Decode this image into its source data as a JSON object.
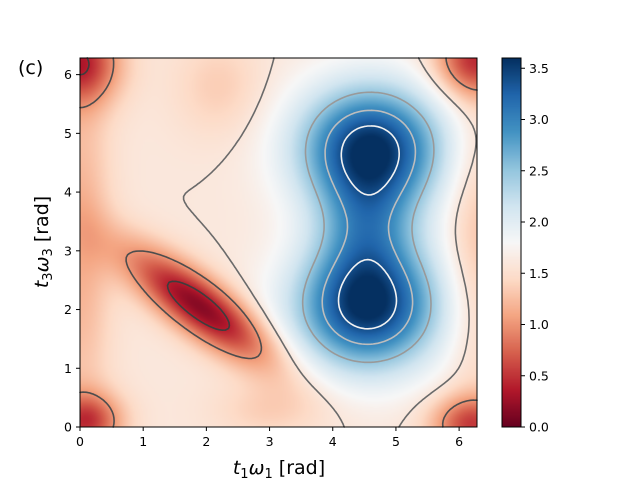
{
  "panel_label": "(c)",
  "chart_data": {
    "type": "heatmap",
    "title": "",
    "colormap": "RdBu",
    "xlabel": {
      "symbol_t": "t",
      "sub_t": "1",
      "symbol_w": "ω",
      "sub_w": "1",
      "unit": " [rad]"
    },
    "ylabel": {
      "symbol_t": "t",
      "sub_t": "3",
      "symbol_w": "ω",
      "sub_w": "3",
      "unit": " [rad]"
    },
    "xlim": [
      0,
      6.283
    ],
    "ylim": [
      0,
      6.283
    ],
    "xticks": [
      0,
      1,
      2,
      3,
      4,
      5,
      6
    ],
    "xtick_labels": [
      "0",
      "1",
      "2",
      "3",
      "4",
      "5",
      "6"
    ],
    "yticks": [
      0,
      1,
      2,
      3,
      4,
      5,
      6
    ],
    "ytick_labels": [
      "0",
      "1",
      "2",
      "3",
      "4",
      "5",
      "6"
    ],
    "colorbar": {
      "vmin": 0.0,
      "vmax": 3.6,
      "ticks": [
        0.0,
        0.5,
        1.0,
        1.5,
        2.0,
        2.5,
        3.0,
        3.5
      ],
      "tick_labels": [
        "0.0",
        "0.5",
        "1.0",
        "1.5",
        "2.0",
        "2.5",
        "3.0",
        "3.5"
      ]
    },
    "features": [
      {
        "kind": "maximum",
        "x": 4.6,
        "y": 4.75,
        "value": 3.6
      },
      {
        "kind": "maximum",
        "x": 4.55,
        "y": 2.05,
        "value": 3.6
      },
      {
        "kind": "minimum",
        "x": 1.5,
        "y": 2.5,
        "value": 0.1
      },
      {
        "kind": "minimum",
        "x": 0.0,
        "y": 6.2,
        "value": 0.3
      },
      {
        "kind": "minimum",
        "x": 6.2,
        "y": 6.2,
        "value": 0.3
      },
      {
        "kind": "minimum",
        "x": 0.05,
        "y": 0.05,
        "value": 0.3
      },
      {
        "kind": "minimum",
        "x": 6.2,
        "y": 0.05,
        "value": 0.3
      }
    ],
    "contour_levels": [
      0.4,
      1.0,
      1.6,
      2.5,
      3.0,
      3.4
    ],
    "contour_colors": [
      "#3d3d3d",
      "#4d4d4d",
      "#6a6a6a",
      "#999999",
      "#bdbdbd",
      "#f2f2f2"
    ]
  }
}
